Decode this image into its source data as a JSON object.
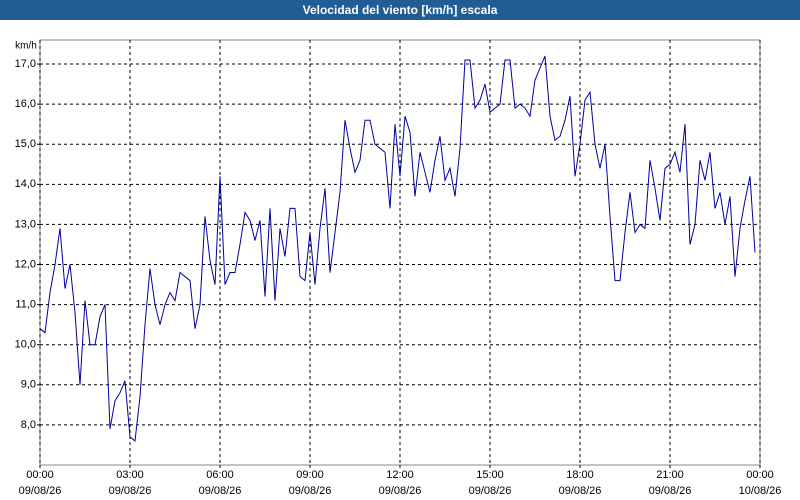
{
  "chart_data": {
    "type": "line",
    "title": "Velocidad del viento [km/h] escala",
    "ylabel": "km/h",
    "x": [
      0,
      10,
      20,
      30,
      40,
      50,
      60,
      70,
      80,
      90,
      100,
      110,
      120,
      130,
      140,
      150,
      160,
      170,
      180,
      190,
      200,
      210,
      220,
      230,
      240,
      250,
      260,
      270,
      280,
      290,
      300,
      310,
      320,
      330,
      340,
      350,
      360,
      370,
      380,
      390,
      400,
      410,
      420,
      430,
      440,
      450,
      460,
      470,
      480,
      490,
      500,
      510,
      520,
      530,
      540,
      550,
      560,
      570,
      580,
      590,
      600,
      610,
      620,
      630,
      640,
      650,
      660,
      670,
      680,
      690,
      700,
      710,
      720,
      730,
      740,
      750,
      760,
      770,
      780,
      790,
      800,
      810,
      820,
      830,
      840,
      850,
      860,
      870,
      880,
      890,
      900,
      910,
      920,
      930,
      940,
      950,
      960,
      970,
      980,
      990,
      1000,
      1010,
      1020,
      1030,
      1040,
      1050,
      1060,
      1070,
      1080,
      1090,
      1100,
      1110,
      1120,
      1130,
      1140,
      1150,
      1160,
      1170,
      1180,
      1190,
      1200,
      1210,
      1220,
      1230,
      1240,
      1250,
      1260,
      1270,
      1280,
      1290,
      1300,
      1310,
      1320,
      1330,
      1340,
      1350,
      1360,
      1370,
      1380,
      1390,
      1400,
      1410,
      1420,
      1430
    ],
    "series": [
      {
        "name": "Velocidad del viento",
        "color": "#0000a0",
        "values": [
          10.4,
          10.3,
          11.3,
          12.0,
          12.9,
          11.4,
          12.0,
          10.8,
          9.0,
          11.1,
          10.0,
          10.0,
          10.7,
          11.0,
          7.9,
          8.6,
          8.8,
          9.1,
          7.7,
          7.6,
          8.7,
          10.5,
          11.9,
          11.0,
          10.5,
          11.0,
          11.3,
          11.1,
          11.8,
          11.7,
          11.6,
          10.4,
          11.0,
          13.2,
          12.1,
          11.5,
          14.2,
          11.5,
          11.8,
          11.8,
          12.5,
          13.3,
          13.1,
          12.6,
          13.1,
          11.2,
          13.4,
          11.1,
          12.9,
          12.2,
          13.4,
          13.4,
          11.7,
          11.6,
          12.8,
          11.5,
          12.9,
          13.9,
          11.8,
          12.8,
          13.8,
          15.6,
          14.9,
          14.3,
          14.6,
          15.6,
          15.6,
          15.0,
          14.9,
          14.8,
          13.4,
          15.5,
          14.2,
          15.7,
          15.3,
          13.7,
          14.8,
          14.3,
          13.8,
          14.6,
          15.2,
          14.1,
          14.4,
          13.7,
          14.9,
          17.1,
          17.1,
          15.9,
          16.1,
          16.5,
          15.8,
          15.9,
          16.0,
          17.1,
          17.1,
          15.9,
          16.0,
          15.9,
          15.7,
          16.6,
          16.9,
          17.2,
          15.7,
          15.1,
          15.2,
          15.6,
          16.2,
          14.2,
          15.0,
          16.1,
          16.3,
          15.0,
          14.4,
          15.0,
          13.2,
          11.6,
          11.6,
          12.8,
          13.8,
          12.8,
          13.0,
          12.9,
          14.6,
          13.9,
          13.1,
          14.4,
          14.5,
          14.8,
          14.3,
          15.5,
          12.5,
          13.0,
          14.6,
          14.1,
          14.8,
          13.4,
          13.8,
          13.0,
          13.7,
          11.7,
          12.9,
          13.6,
          14.2,
          12.3
        ]
      }
    ],
    "xlim": [
      0,
      1440
    ],
    "xticks": [
      {
        "value": 0,
        "label": "00:00"
      },
      {
        "value": 180,
        "label": "03:00"
      },
      {
        "value": 360,
        "label": "06:00"
      },
      {
        "value": 540,
        "label": "09:00"
      },
      {
        "value": 720,
        "label": "12:00"
      },
      {
        "value": 900,
        "label": "15:00"
      },
      {
        "value": 1080,
        "label": "18:00"
      },
      {
        "value": 1260,
        "label": "21:00"
      },
      {
        "value": 1440,
        "label": "00:00"
      }
    ],
    "xtick_dates": [
      "09/08/26",
      "09/08/26",
      "09/08/26",
      "09/08/26",
      "09/08/26",
      "09/08/26",
      "09/08/26",
      "09/08/26",
      "10/08/26"
    ],
    "ylim": [
      7,
      17.6
    ],
    "yticks": [
      {
        "value": 8,
        "label": "8,0"
      },
      {
        "value": 9,
        "label": "9,0"
      },
      {
        "value": 10,
        "label": "10,0"
      },
      {
        "value": 11,
        "label": "11,0"
      },
      {
        "value": 12,
        "label": "12,0"
      },
      {
        "value": 13,
        "label": "13,0"
      },
      {
        "value": 14,
        "label": "14,0"
      },
      {
        "value": 15,
        "label": "15,0"
      },
      {
        "value": 16,
        "label": "16,0"
      },
      {
        "value": 17,
        "label": "17,0"
      }
    ],
    "grid": true
  }
}
